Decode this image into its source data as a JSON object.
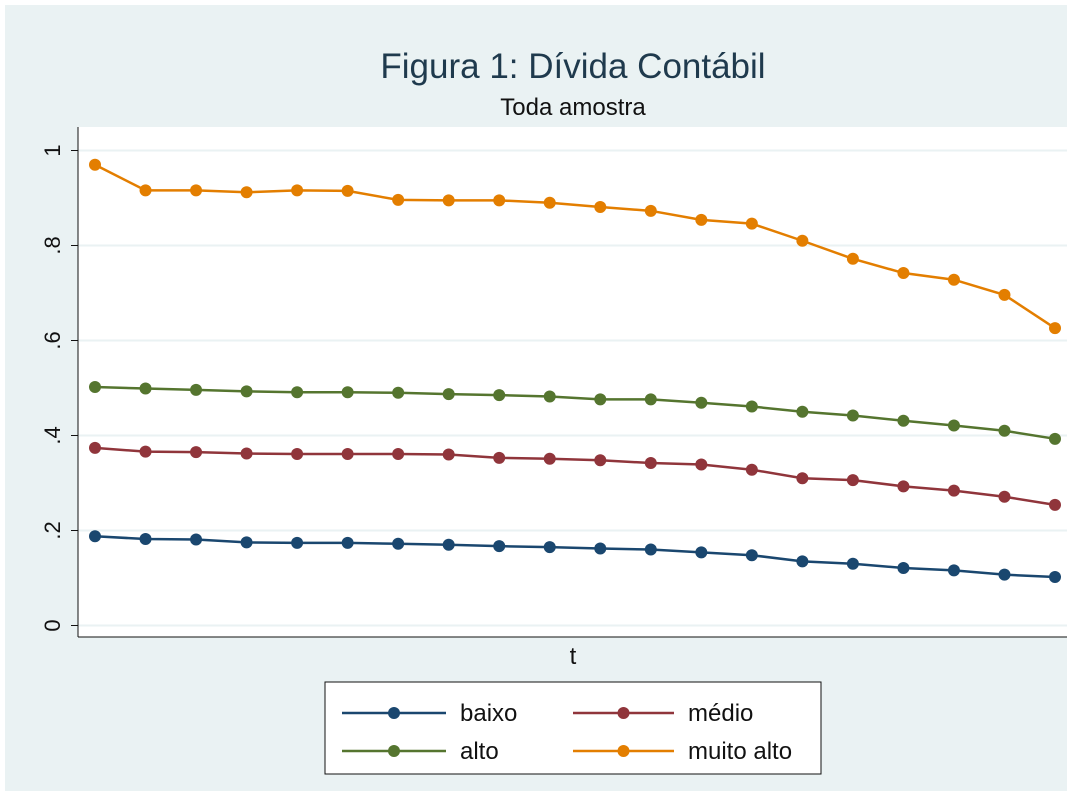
{
  "chart_data": {
    "type": "line",
    "title": "Figura 1: Dívida Contábil",
    "subtitle": "Toda amostra",
    "xlabel": "t",
    "ylabel": "",
    "ylim": [
      0,
      1.05
    ],
    "yticks": [
      0,
      0.2,
      0.4,
      0.6,
      0.8,
      1.0
    ],
    "ytick_labels": [
      "0",
      ".2",
      ".4",
      ".6",
      ".8",
      "1"
    ],
    "x": [
      1,
      2,
      3,
      4,
      5,
      6,
      7,
      8,
      9,
      10,
      11,
      12,
      13,
      14,
      15,
      16,
      17,
      18,
      19,
      20
    ],
    "grid": true,
    "legend_position": "bottom",
    "series": [
      {
        "name": "baixo",
        "color": "#1a476f",
        "values": [
          0.188,
          0.182,
          0.181,
          0.175,
          0.174,
          0.174,
          0.172,
          0.17,
          0.167,
          0.165,
          0.162,
          0.16,
          0.154,
          0.148,
          0.135,
          0.13,
          0.121,
          0.116,
          0.107,
          0.102
        ]
      },
      {
        "name": "médio",
        "color": "#90353b",
        "values": [
          0.374,
          0.366,
          0.365,
          0.362,
          0.361,
          0.361,
          0.361,
          0.36,
          0.353,
          0.351,
          0.348,
          0.342,
          0.339,
          0.328,
          0.31,
          0.306,
          0.293,
          0.284,
          0.271,
          0.254
        ]
      },
      {
        "name": "alto",
        "color": "#55752f",
        "values": [
          0.502,
          0.499,
          0.496,
          0.493,
          0.491,
          0.491,
          0.49,
          0.487,
          0.485,
          0.482,
          0.476,
          0.476,
          0.469,
          0.461,
          0.45,
          0.442,
          0.431,
          0.421,
          0.41,
          0.393
        ]
      },
      {
        "name": "muito alto",
        "color": "#e37e00",
        "values": [
          0.97,
          0.916,
          0.916,
          0.912,
          0.916,
          0.915,
          0.896,
          0.895,
          0.895,
          0.89,
          0.881,
          0.873,
          0.854,
          0.846,
          0.81,
          0.772,
          0.742,
          0.728,
          0.696,
          0.626
        ]
      }
    ]
  }
}
